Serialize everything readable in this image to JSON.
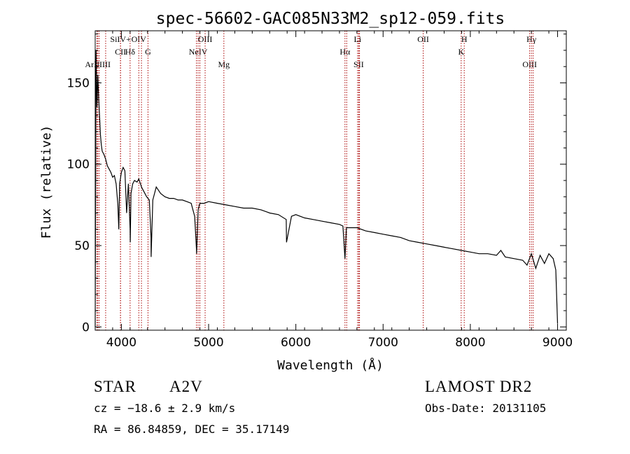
{
  "chart_data": {
    "type": "line",
    "title": "spec-56602-GAC085N33M2_sp12-059.fits",
    "xlabel": "Wavelength (Å)",
    "ylabel": "Flux (relative)",
    "xlim": [
      3700,
      9100
    ],
    "ylim": [
      -2,
      182
    ],
    "xticks": [
      4000,
      5000,
      6000,
      7000,
      8000,
      9000
    ],
    "yticks": [
      0,
      50,
      100,
      150
    ],
    "grid": false,
    "line_color": "#000000",
    "marker_color": "#aa0000",
    "spectrum": {
      "x": [
        3700,
        3710,
        3720,
        3730,
        3740,
        3750,
        3760,
        3770,
        3780,
        3800,
        3820,
        3840,
        3860,
        3880,
        3900,
        3920,
        3940,
        3960,
        3970,
        3980,
        4000,
        4020,
        4040,
        4060,
        4080,
        4100,
        4102,
        4110,
        4130,
        4150,
        4180,
        4200,
        4230,
        4260,
        4290,
        4320,
        4340,
        4341,
        4360,
        4400,
        4450,
        4500,
        4550,
        4600,
        4650,
        4700,
        4750,
        4800,
        4840,
        4860,
        4862,
        4880,
        4900,
        4950,
        5000,
        5100,
        5200,
        5300,
        5400,
        5500,
        5600,
        5700,
        5800,
        5890,
        5893,
        5950,
        6000,
        6100,
        6200,
        6300,
        6400,
        6500,
        6540,
        6563,
        6580,
        6620,
        6700,
        6800,
        6900,
        7000,
        7100,
        7200,
        7300,
        7400,
        7500,
        7600,
        7700,
        7800,
        7900,
        8000,
        8100,
        8200,
        8300,
        8350,
        8400,
        8500,
        8600,
        8650,
        8700,
        8750,
        8800,
        8850,
        8900,
        8950,
        8980,
        9000
      ],
      "flux": [
        0,
        170,
        135,
        155,
        140,
        130,
        118,
        112,
        108,
        106,
        103,
        99,
        97,
        95,
        92,
        93,
        88,
        75,
        60,
        88,
        95,
        98,
        96,
        70,
        88,
        60,
        52,
        82,
        88,
        90,
        89,
        91,
        86,
        83,
        80,
        78,
        55,
        43,
        78,
        86,
        82,
        80,
        79,
        79,
        78,
        78,
        77,
        76,
        68,
        48,
        45,
        72,
        76,
        76,
        77,
        76,
        75,
        74,
        73,
        73,
        72,
        70,
        69,
        66,
        52,
        68,
        69,
        67,
        66,
        65,
        64,
        63,
        62,
        42,
        61,
        61,
        61,
        59,
        58,
        57,
        56,
        55,
        53,
        52,
        51,
        50,
        49,
        48,
        47,
        46,
        45,
        45,
        44,
        47,
        43,
        42,
        41,
        38,
        45,
        36,
        44,
        39,
        45,
        42,
        35,
        2
      ]
    },
    "line_markers": {
      "upper": [
        {
          "label": "SiIV+",
          "x": 3990
        },
        {
          "label": "OIV",
          "x": 4200
        },
        {
          "label": "OIII",
          "x": 4960
        },
        {
          "label": "Li",
          "x": 6708
        },
        {
          "label": "OII",
          "x": 7460
        },
        {
          "label": "H",
          "x": 7930
        },
        {
          "label": "Hγ",
          "x": 8700
        }
      ],
      "middle": [
        {
          "label": "CII",
          "x": 3990
        },
        {
          "label": "Hδ",
          "x": 4100
        },
        {
          "label": "G",
          "x": 4305
        },
        {
          "label": "NeIV",
          "x": 4880
        },
        {
          "label": "Hα",
          "x": 6563
        },
        {
          "label": "K",
          "x": 7895
        }
      ],
      "lower": [
        {
          "label": "ArIIIIII",
          "x": 3730
        },
        {
          "label": "Mg",
          "x": 5175
        },
        {
          "label": "SII",
          "x": 6720
        },
        {
          "label": "OIII",
          "x": 8680
        }
      ],
      "extra_lines": [
        3720,
        3745,
        3820,
        4230,
        4861,
        4900,
        6583,
        6730,
        8720
      ]
    }
  },
  "info": {
    "object_class": "STAR",
    "subclass": "A2V",
    "survey": "LAMOST DR2",
    "velocity": "cz = −18.6 ± 2.9 km/s",
    "obs_date": "Obs-Date: 20131105",
    "coords": "RA =  86.84859, DEC =  35.17149"
  }
}
